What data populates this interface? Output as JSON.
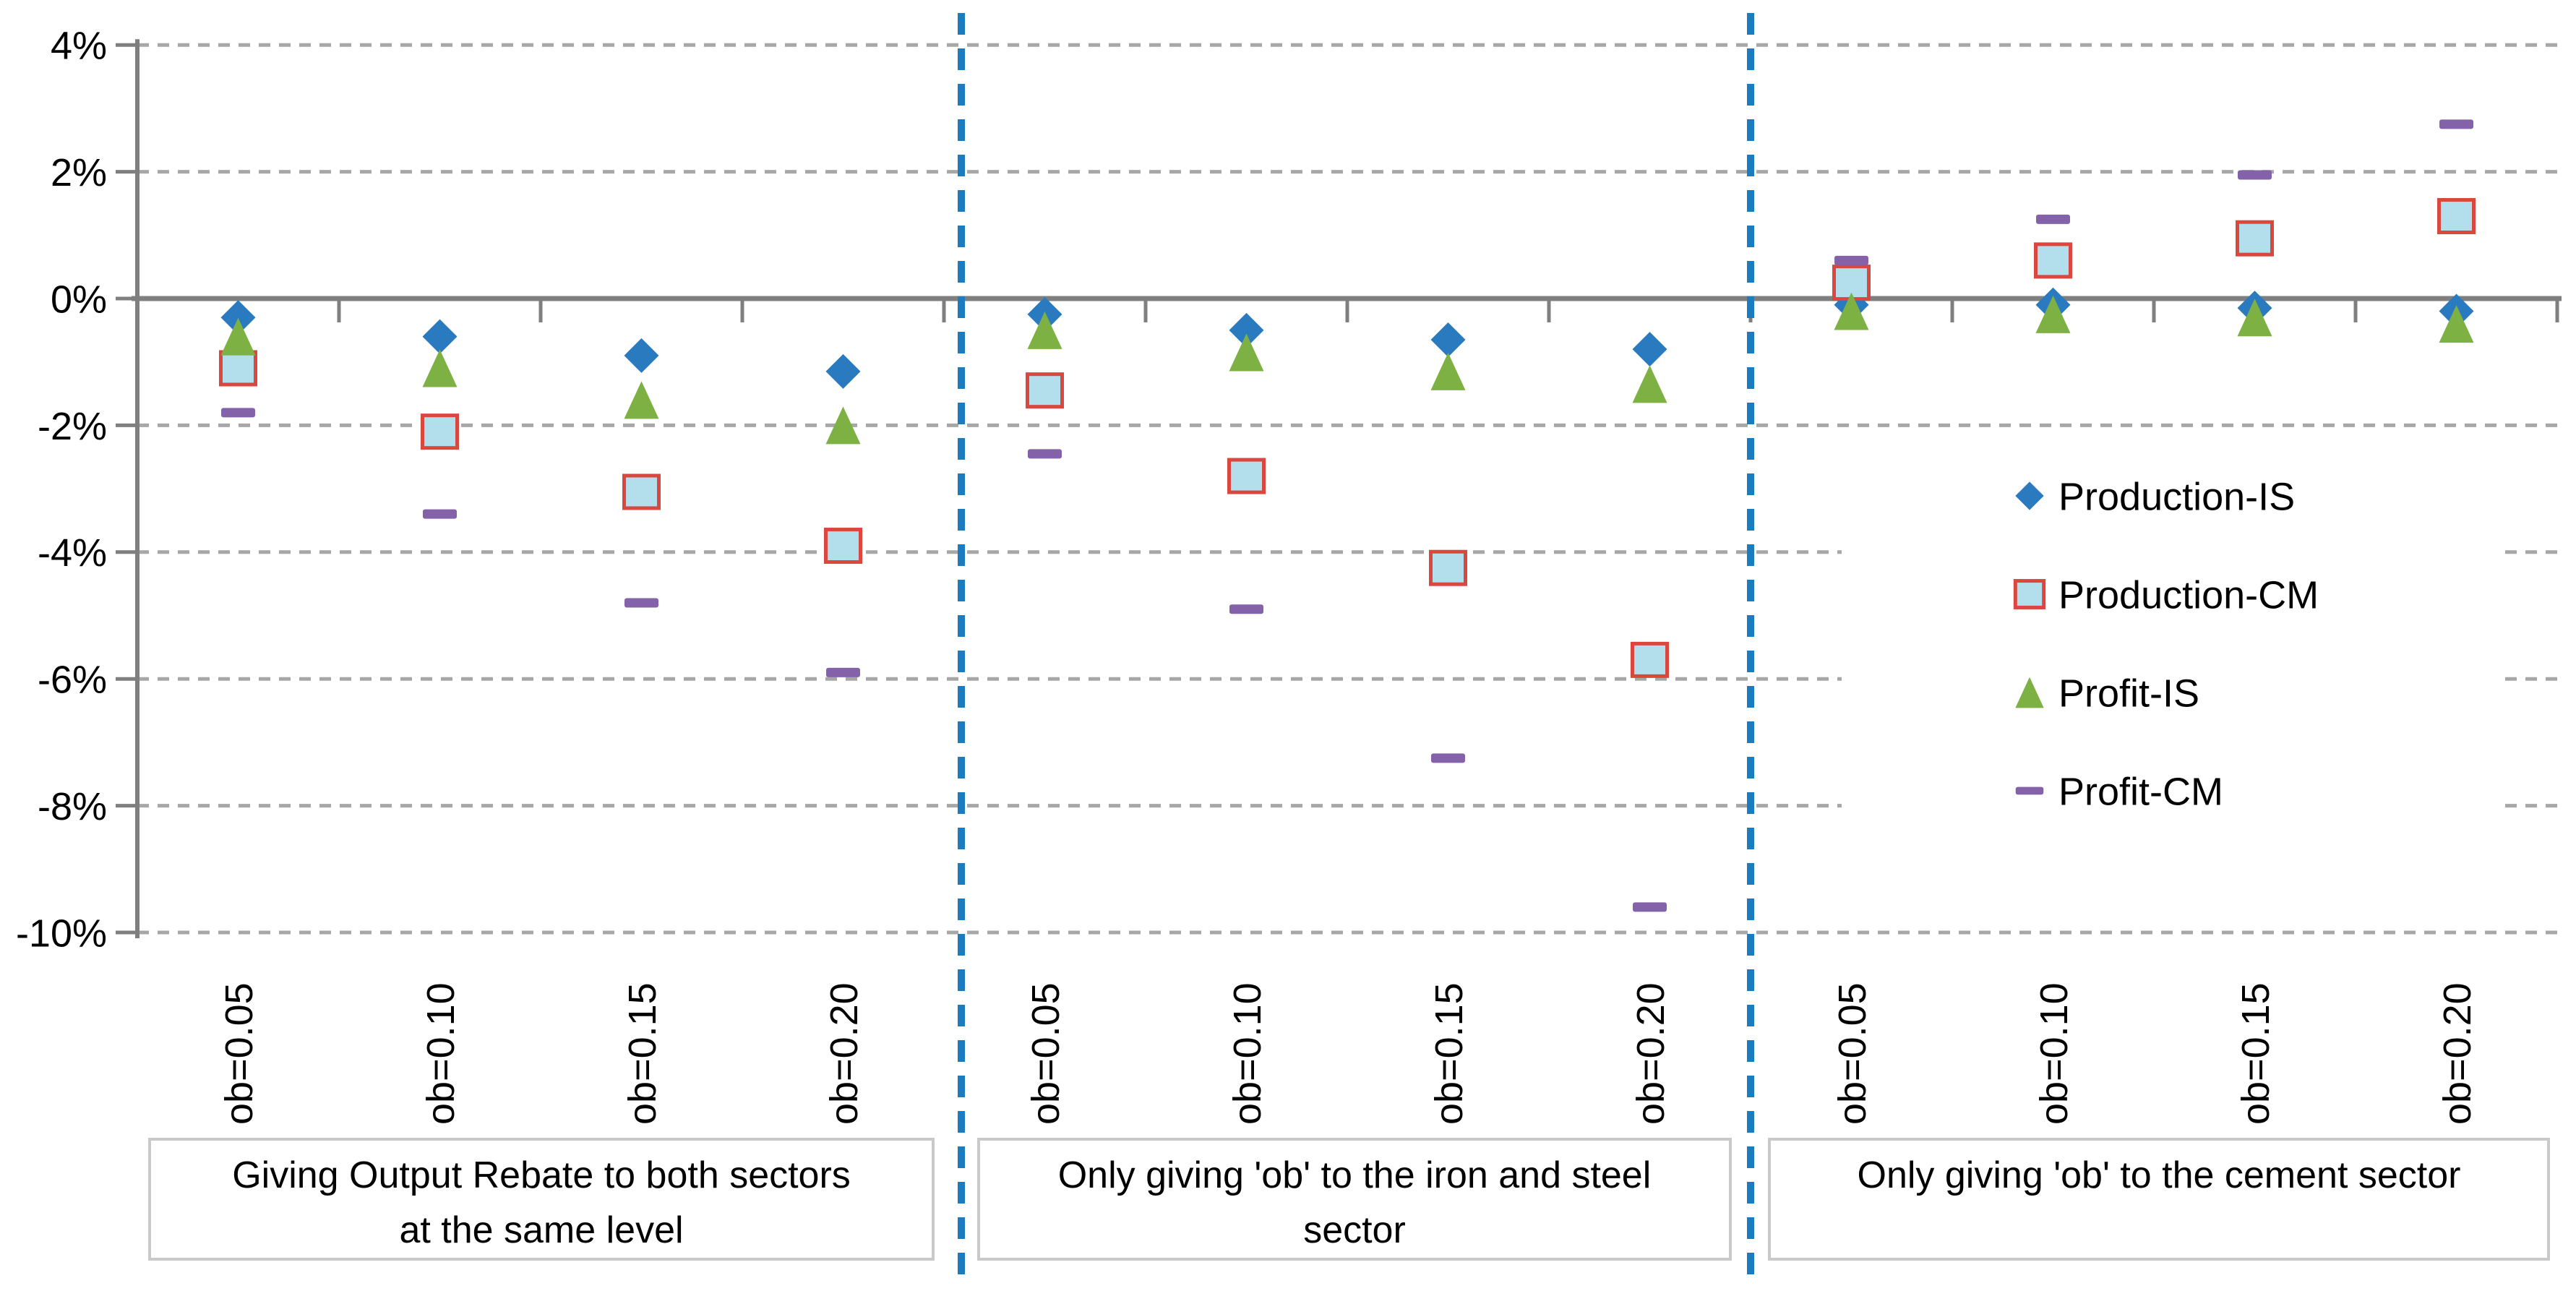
{
  "chart_data": {
    "type": "scatter",
    "title": "",
    "grid": "dashed-horizontal",
    "legend_position": "middle-right",
    "ylim": [
      -10,
      4
    ],
    "y_tick_values": [
      4,
      2,
      0,
      -2,
      -4,
      -6,
      -8,
      -10
    ],
    "y_tick_labels": [
      "4%",
      "2%",
      "0%",
      "-2%",
      "-4%",
      "-6%",
      "-8%",
      "-10%"
    ],
    "categories": [
      "ob=0.05",
      "ob=0.10",
      "ob=0.15",
      "ob=0.20"
    ],
    "groups": [
      {
        "label": "Giving Output Rebate to both sectors at the same level",
        "lines": [
          "Giving Output Rebate to both sectors",
          "at the same level"
        ]
      },
      {
        "label": "Only giving 'ob' to the iron and steel sector",
        "lines": [
          "Only giving 'ob' to the iron and steel",
          "sector"
        ]
      },
      {
        "label": "Only giving 'ob' to the cement sector",
        "lines": [
          "Only giving 'ob' to the cement sector",
          ""
        ]
      }
    ],
    "series": [
      {
        "name": "Production-IS",
        "marker": "diamond",
        "color": "#2A7ABF",
        "values": [
          [
            -0.3,
            -0.6,
            -0.9,
            -1.15
          ],
          [
            -0.25,
            -0.5,
            -0.65,
            -0.8
          ],
          [
            -0.1,
            -0.1,
            -0.15,
            -0.2
          ]
        ]
      },
      {
        "name": "Production-CM",
        "marker": "square",
        "color": "#B3DEEC",
        "border_color": "#D9473E",
        "values": [
          [
            -1.1,
            -2.1,
            -3.05,
            -3.9
          ],
          [
            -1.45,
            -2.8,
            -4.25,
            -5.7
          ],
          [
            0.25,
            0.6,
            0.95,
            1.3
          ]
        ]
      },
      {
        "name": "Profit-IS",
        "marker": "triangle",
        "color": "#7DB144",
        "values": [
          [
            -0.6,
            -1.1,
            -1.6,
            -2.0
          ],
          [
            -0.5,
            -0.85,
            -1.15,
            -1.35
          ],
          [
            -0.2,
            -0.25,
            -0.3,
            -0.4
          ]
        ]
      },
      {
        "name": "Profit-CM",
        "marker": "dash",
        "color": "#8462A9",
        "values": [
          [
            -1.8,
            -3.4,
            -4.8,
            -5.9
          ],
          [
            -2.45,
            -4.9,
            -7.25,
            -9.6
          ],
          [
            0.6,
            1.25,
            1.95,
            2.75
          ]
        ]
      }
    ],
    "colors": {
      "axis": "#7F7F7F",
      "gridline": "#A7A7A7",
      "divider": "#1B7CBF",
      "group_box_border": "#C9C9C9",
      "background": "#FFFFFF"
    }
  }
}
